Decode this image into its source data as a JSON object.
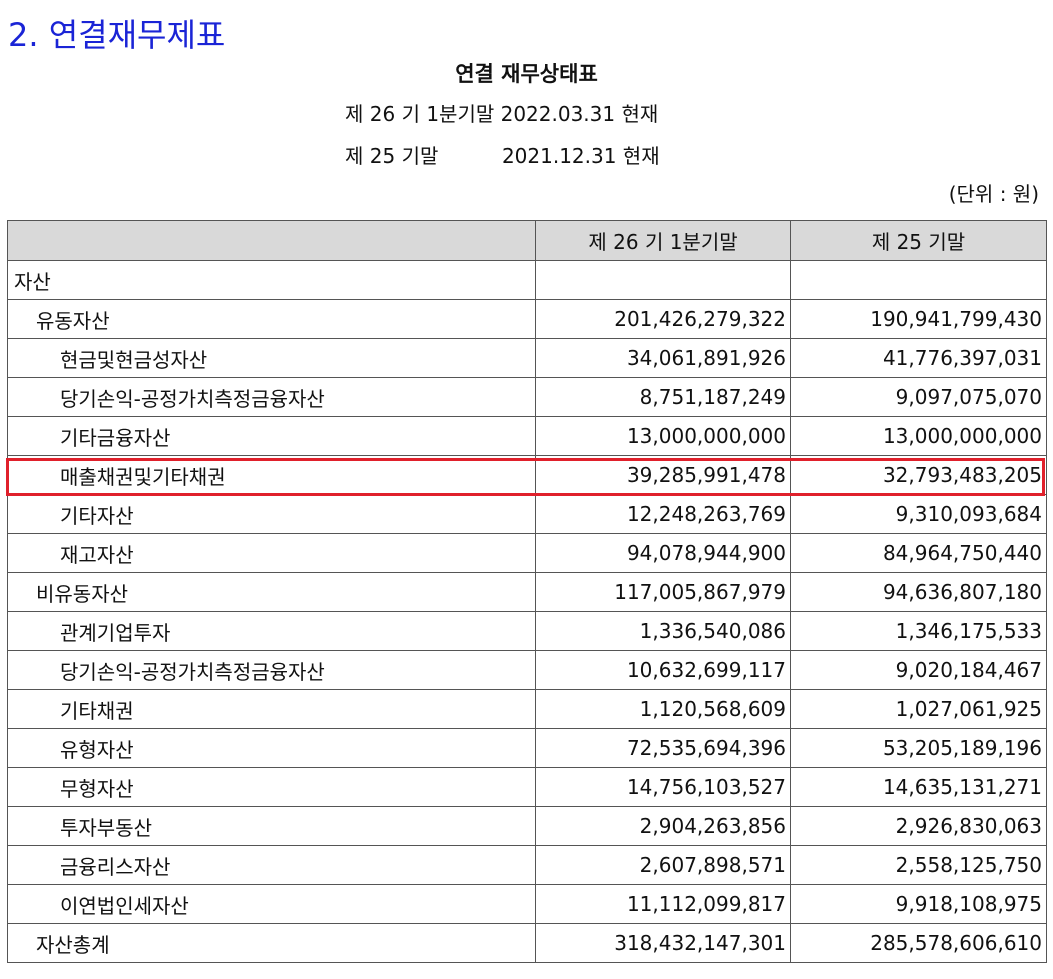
{
  "section_title": "2. 연결재무제표",
  "doc_title": "연결 재무상태표",
  "period_current": "제 26 기 1분기말 2022.03.31 현재",
  "period_prior": "제 25 기말          2021.12.31 현재",
  "unit": "(단위 : 원)",
  "table": {
    "headers": [
      "",
      "제 26 기 1분기말",
      "제 25 기말"
    ],
    "rows": [
      {
        "label": "자산",
        "indent": 0,
        "current": "",
        "prior": ""
      },
      {
        "label": "유동자산",
        "indent": 1,
        "current": "201,426,279,322",
        "prior": "190,941,799,430"
      },
      {
        "label": "현금및현금성자산",
        "indent": 2,
        "current": "34,061,891,926",
        "prior": "41,776,397,031"
      },
      {
        "label": "당기손익-공정가치측정금융자산",
        "indent": 2,
        "current": "8,751,187,249",
        "prior": "9,097,075,070"
      },
      {
        "label": "기타금융자산",
        "indent": 2,
        "current": "13,000,000,000",
        "prior": "13,000,000,000"
      },
      {
        "label": "매출채권및기타채권",
        "indent": 2,
        "current": "39,285,991,478",
        "prior": "32,793,483,205"
      },
      {
        "label": "기타자산",
        "indent": 2,
        "current": "12,248,263,769",
        "prior": "9,310,093,684"
      },
      {
        "label": "재고자산",
        "indent": 2,
        "current": "94,078,944,900",
        "prior": "84,964,750,440"
      },
      {
        "label": "비유동자산",
        "indent": 1,
        "current": "117,005,867,979",
        "prior": "94,636,807,180"
      },
      {
        "label": "관계기업투자",
        "indent": 2,
        "current": "1,336,540,086",
        "prior": "1,346,175,533"
      },
      {
        "label": "당기손익-공정가치측정금융자산",
        "indent": 2,
        "current": "10,632,699,117",
        "prior": "9,020,184,467"
      },
      {
        "label": "기타채권",
        "indent": 2,
        "current": "1,120,568,609",
        "prior": "1,027,061,925"
      },
      {
        "label": "유형자산",
        "indent": 2,
        "current": "72,535,694,396",
        "prior": "53,205,189,196"
      },
      {
        "label": "무형자산",
        "indent": 2,
        "current": "14,756,103,527",
        "prior": "14,635,131,271"
      },
      {
        "label": "투자부동산",
        "indent": 2,
        "current": "2,904,263,856",
        "prior": "2,926,830,063"
      },
      {
        "label": "금융리스자산",
        "indent": 2,
        "current": "2,607,898,571",
        "prior": "2,558,125,750"
      },
      {
        "label": "이연법인세자산",
        "indent": 2,
        "current": "11,112,099,817",
        "prior": "9,918,108,975"
      },
      {
        "label": "자산총계",
        "indent": 1,
        "current": "318,432,147,301",
        "prior": "285,578,606,610"
      }
    ]
  },
  "highlight_row_index": 5,
  "highlight_color": "#e0202b"
}
